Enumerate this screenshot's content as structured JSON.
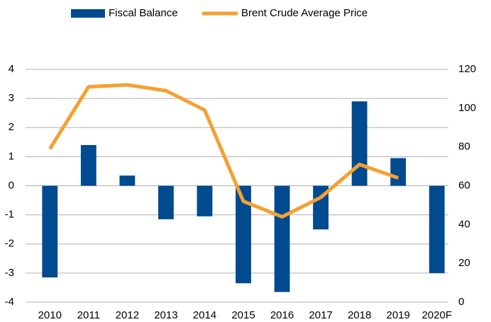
{
  "chart_data": {
    "type": "bar_line",
    "categories": [
      "2010",
      "2011",
      "2012",
      "2013",
      "2014",
      "2015",
      "2016",
      "2017",
      "2018",
      "2019",
      "2020F"
    ],
    "series": [
      {
        "name": "Fiscal Balance",
        "type": "bar",
        "color": "#004a8f",
        "axis": "y",
        "values": [
          -3.15,
          1.4,
          0.35,
          -1.15,
          -1.05,
          -3.35,
          -3.65,
          -1.5,
          2.9,
          0.95,
          -3.0
        ]
      },
      {
        "name": "Brent Crude Average Price",
        "type": "line",
        "color": "#f5a031",
        "axis": "y2",
        "values": [
          79,
          111,
          112,
          109,
          99,
          52,
          44,
          54,
          71,
          64,
          null
        ]
      }
    ],
    "ylim": [
      -4,
      4
    ],
    "yticks": [
      -4,
      -3,
      -2,
      -1,
      0,
      1,
      2,
      3,
      4
    ],
    "y2lim": [
      0,
      120
    ],
    "y2ticks": [
      0,
      20,
      40,
      60,
      80,
      100,
      120
    ],
    "grid": true,
    "legend": "top"
  }
}
